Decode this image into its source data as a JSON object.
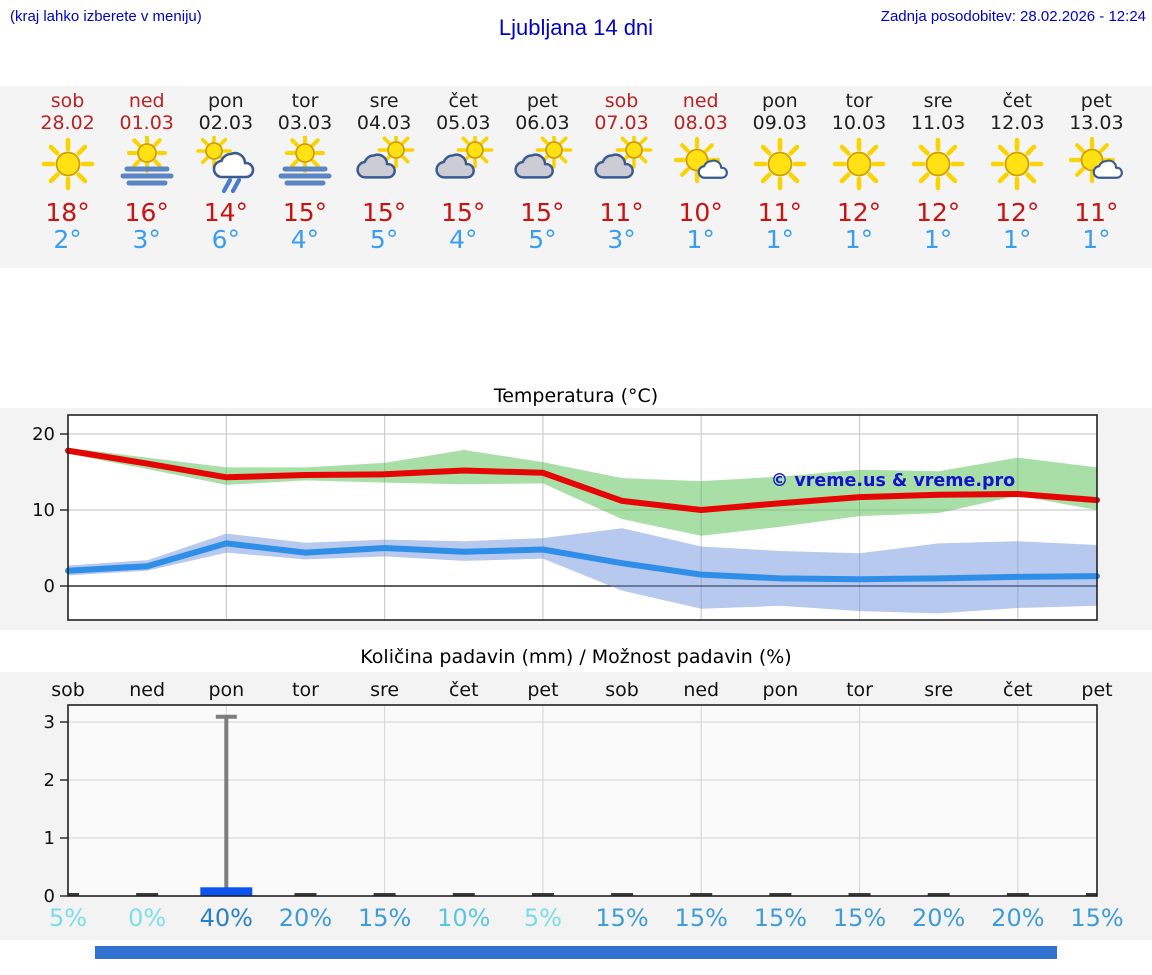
{
  "header": {
    "note": "(kraj lahko izberete v meniju)",
    "title": "Ljubljana 14 dni",
    "updated": "Zadnja posodobitev: 28.02.2026 - 12:24"
  },
  "colors": {
    "weekend_text": "#b92323",
    "weekday_text": "#1f1f1f",
    "high_temp": "#c91313",
    "low_temp": "#3b9df2",
    "header_blue": "#0202cf",
    "footer_bar": "#3273d2",
    "strip_bg": "#f4f4f4",
    "figure_bg": "#f3f3f3"
  },
  "days": [
    {
      "name": "sob",
      "date": "28.02",
      "weekend": true,
      "icon": "sun",
      "high": "18°",
      "low": "2°"
    },
    {
      "name": "ned",
      "date": "01.03",
      "weekend": true,
      "icon": "sun-fog",
      "high": "16°",
      "low": "3°"
    },
    {
      "name": "pon",
      "date": "02.03",
      "weekend": false,
      "icon": "sun-rain",
      "high": "14°",
      "low": "6°"
    },
    {
      "name": "tor",
      "date": "03.03",
      "weekend": false,
      "icon": "sun-fog",
      "high": "15°",
      "low": "4°"
    },
    {
      "name": "sre",
      "date": "04.03",
      "weekend": false,
      "icon": "cloud-sun",
      "high": "15°",
      "low": "5°"
    },
    {
      "name": "čet",
      "date": "05.03",
      "weekend": false,
      "icon": "cloud-sun",
      "high": "15°",
      "low": "4°"
    },
    {
      "name": "pet",
      "date": "06.03",
      "weekend": false,
      "icon": "cloud-sun",
      "high": "15°",
      "low": "5°"
    },
    {
      "name": "sob",
      "date": "07.03",
      "weekend": true,
      "icon": "cloud-sun",
      "high": "11°",
      "low": "3°"
    },
    {
      "name": "ned",
      "date": "08.03",
      "weekend": true,
      "icon": "sun-smallcloud",
      "high": "10°",
      "low": "1°"
    },
    {
      "name": "pon",
      "date": "09.03",
      "weekend": false,
      "icon": "sun",
      "high": "11°",
      "low": "1°"
    },
    {
      "name": "tor",
      "date": "10.03",
      "weekend": false,
      "icon": "sun",
      "high": "12°",
      "low": "1°"
    },
    {
      "name": "sre",
      "date": "11.03",
      "weekend": false,
      "icon": "sun",
      "high": "12°",
      "low": "1°"
    },
    {
      "name": "čet",
      "date": "12.03",
      "weekend": false,
      "icon": "sun",
      "high": "12°",
      "low": "1°"
    },
    {
      "name": "pet",
      "date": "13.03",
      "weekend": false,
      "icon": "sun-smallcloud",
      "high": "11°",
      "low": "1°"
    }
  ],
  "chart_data": [
    {
      "type": "line",
      "title": "Temperatura (°C)",
      "watermark": "© vreme.us & vreme.pro",
      "categories": [
        "sob",
        "ned",
        "pon",
        "tor",
        "sre",
        "čet",
        "pet",
        "sob",
        "ned",
        "pon",
        "tor",
        "sre",
        "čet",
        "pet"
      ],
      "ylim": [
        -4.5,
        22.5
      ],
      "yticks": [
        0,
        10,
        20
      ],
      "grid_day_indices": [
        2,
        4,
        6,
        8,
        10,
        12
      ],
      "series": [
        {
          "name": "max-temp",
          "color": "#e60505",
          "values": [
            17.8,
            16.1,
            14.3,
            14.6,
            14.7,
            15.2,
            14.9,
            11.2,
            10.0,
            10.9,
            11.7,
            12.0,
            12.1,
            11.3
          ]
        },
        {
          "name": "min-temp",
          "color": "#2f8fe8",
          "values": [
            2.0,
            2.6,
            5.6,
            4.4,
            5.0,
            4.5,
            4.8,
            3.0,
            1.5,
            1.0,
            0.9,
            1.0,
            1.2,
            1.3
          ]
        }
      ],
      "bands": [
        {
          "name": "max-temp-range",
          "color": "#4fbf4f",
          "upper": [
            18.2,
            16.9,
            15.6,
            15.6,
            16.2,
            17.9,
            16.3,
            14.2,
            13.8,
            14.4,
            15.3,
            15.1,
            16.9,
            15.6
          ],
          "lower": [
            17.4,
            15.4,
            13.3,
            13.9,
            13.6,
            13.4,
            13.5,
            8.8,
            6.6,
            7.8,
            9.2,
            9.6,
            11.9,
            10.0
          ]
        },
        {
          "name": "min-temp-range",
          "color": "#6f94e0",
          "upper": [
            2.7,
            3.4,
            6.9,
            5.7,
            6.1,
            5.9,
            6.3,
            7.6,
            5.2,
            4.6,
            4.3,
            5.6,
            5.9,
            5.4
          ],
          "lower": [
            1.4,
            2.0,
            4.4,
            3.5,
            3.9,
            3.3,
            3.6,
            -0.6,
            -3.0,
            -2.6,
            -3.3,
            -3.6,
            -2.9,
            -2.6
          ]
        }
      ]
    },
    {
      "type": "bar",
      "title": "Količina padavin (mm) / Možnost padavin (%)",
      "categories": [
        "sob",
        "ned",
        "pon",
        "tor",
        "sre",
        "čet",
        "pet",
        "sob",
        "ned",
        "pon",
        "tor",
        "sre",
        "čet",
        "pet"
      ],
      "ylim": [
        0,
        3.35
      ],
      "yticks": [
        0,
        1,
        2,
        3
      ],
      "grid_day_indices": [
        2,
        4,
        6,
        8,
        10,
        12
      ],
      "values": [
        0,
        0,
        0.15,
        0,
        0,
        0,
        0,
        0,
        0,
        0,
        0,
        0,
        0,
        0
      ],
      "bar_color": "#0a55ef",
      "whisker": {
        "day_index": 2,
        "max": 3.09,
        "color": "#7d7d7d"
      },
      "probabilities": [
        5,
        0,
        40,
        20,
        15,
        10,
        5,
        15,
        15,
        15,
        15,
        20,
        20,
        15
      ],
      "prob_labels": [
        "5%",
        "0%",
        "40%",
        "20%",
        "15%",
        "10%",
        "5%",
        "15%",
        "15%",
        "15%",
        "15%",
        "20%",
        "20%",
        "15%"
      ],
      "prob_colors": [
        "#79dce9",
        "#7ce0ea",
        "#2b80c5",
        "#3f9cd8",
        "#3f9cd8",
        "#58c8e2",
        "#79dce9",
        "#3f9cd8",
        "#3f9cd8",
        "#3f9cd8",
        "#3f9cd8",
        "#3f9cd8",
        "#3f9cd8",
        "#3f9cd8"
      ]
    }
  ]
}
